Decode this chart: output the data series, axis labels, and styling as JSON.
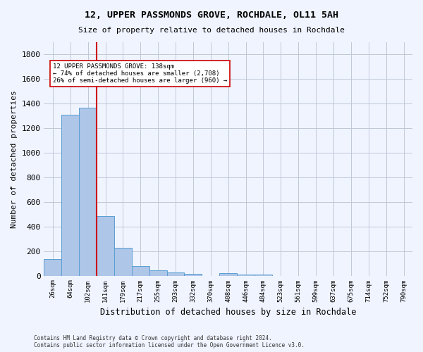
{
  "title": "12, UPPER PASSMONDS GROVE, ROCHDALE, OL11 5AH",
  "subtitle": "Size of property relative to detached houses in Rochdale",
  "xlabel": "Distribution of detached houses by size in Rochdale",
  "ylabel": "Number of detached properties",
  "bin_labels": [
    "26sqm",
    "64sqm",
    "102sqm",
    "141sqm",
    "179sqm",
    "217sqm",
    "255sqm",
    "293sqm",
    "332sqm",
    "370sqm",
    "408sqm",
    "446sqm",
    "484sqm",
    "523sqm",
    "561sqm",
    "599sqm",
    "637sqm",
    "675sqm",
    "714sqm",
    "752sqm",
    "790sqm"
  ],
  "bar_values": [
    136,
    1310,
    1365,
    485,
    225,
    75,
    43,
    27,
    15,
    0,
    20,
    10,
    10,
    0,
    0,
    0,
    0,
    0,
    0,
    0,
    0
  ],
  "bar_color": "#aec6e8",
  "bar_edge_color": "#5a9fd4",
  "vline_x": 3.0,
  "annotation_line1": "12 UPPER PASSMONDS GROVE: 138sqm",
  "annotation_line2": "← 74% of detached houses are smaller (2,708)",
  "annotation_line3": "26% of semi-detached houses are larger (960) →",
  "annotation_box_color": "#ffffff",
  "annotation_box_edge": "#cc0000",
  "vline_color": "#cc0000",
  "ylim": [
    0,
    1900
  ],
  "yticks": [
    0,
    200,
    400,
    600,
    800,
    1000,
    1200,
    1400,
    1600,
    1800
  ],
  "footer_line1": "Contains HM Land Registry data © Crown copyright and database right 2024.",
  "footer_line2": "Contains public sector information licensed under the Open Government Licence v3.0.",
  "background_color": "#f0f4ff",
  "grid_color": "#c0c8d8"
}
